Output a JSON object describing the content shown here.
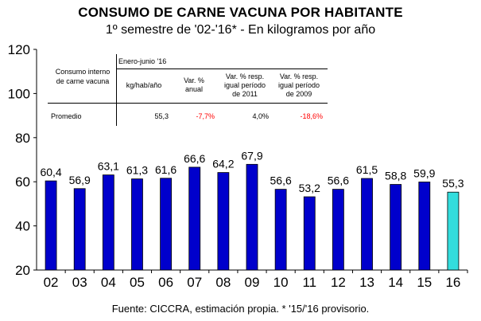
{
  "title": "CONSUMO DE CARNE VACUNA POR HABITANTE",
  "subtitle": "1º semestre de '02-'16* - En kilogramos por año",
  "source": "Fuente: CICCRA, estimación propia. * '15/'16 provisorio.",
  "table": {
    "row_header": "Consumo interno\nde carne vacuna",
    "period": "Enero-junio '16",
    "col_headers": [
      "kg/hab/año",
      "Var. %\nanual",
      "Var. % resp.\nigual período\nde 2011",
      "Var. % resp.\nigual período\nde 2009"
    ],
    "row_label": "Promedio",
    "values": [
      "55,3",
      "-7,7%",
      "4,0%",
      "-18,6%"
    ],
    "value_colors": [
      "#000000",
      "#ff0000",
      "#000000",
      "#ff0000"
    ]
  },
  "chart_data": {
    "type": "bar",
    "categories": [
      "02",
      "03",
      "04",
      "05",
      "06",
      "07",
      "08",
      "09",
      "10",
      "11",
      "12",
      "13",
      "14",
      "15",
      "16"
    ],
    "values": [
      60.4,
      56.9,
      63.1,
      61.3,
      61.6,
      66.6,
      64.2,
      67.9,
      56.6,
      53.2,
      56.6,
      61.5,
      58.8,
      59.9,
      55.3
    ],
    "labels": [
      "60,4",
      "56,9",
      "63,1",
      "61,3",
      "61,6",
      "66,6",
      "64,2",
      "67,9",
      "56,6",
      "53,2",
      "56,6",
      "61,5",
      "58,8",
      "59,9",
      "55,3"
    ],
    "ylim": [
      20,
      120
    ],
    "yticks": [
      20,
      40,
      60,
      80,
      100,
      120
    ],
    "bar_color": "#0000cc",
    "highlight_color": "#33dddd",
    "highlight_index": 14,
    "grid": false
  }
}
